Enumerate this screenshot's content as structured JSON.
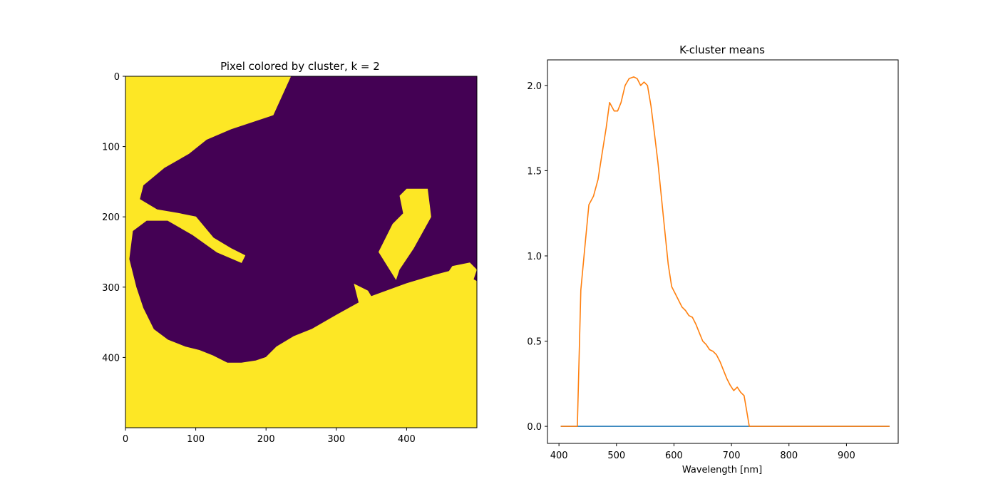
{
  "chart_data": [
    {
      "type": "heatmap",
      "title": "Pixel colored by cluster, k = 2",
      "xlabel": "",
      "ylabel": "",
      "xlim": [
        0,
        500
      ],
      "ylim": [
        500,
        0
      ],
      "xticks": [
        0,
        100,
        200,
        300,
        400
      ],
      "yticks": [
        0,
        100,
        200,
        300,
        400
      ],
      "colors": {
        "cluster_0": "#440154",
        "cluster_1": "#fde725"
      },
      "cluster_1_boundary": [
        [
          0,
          0
        ],
        [
          235,
          0
        ],
        [
          210,
          55
        ],
        [
          150,
          75
        ],
        [
          115,
          90
        ],
        [
          90,
          110
        ],
        [
          55,
          130
        ],
        [
          25,
          155
        ],
        [
          20,
          175
        ],
        [
          45,
          190
        ],
        [
          75,
          195
        ],
        [
          100,
          200
        ],
        [
          125,
          230
        ],
        [
          150,
          245
        ],
        [
          170,
          255
        ],
        [
          165,
          265
        ],
        [
          130,
          250
        ],
        [
          95,
          225
        ],
        [
          60,
          205
        ],
        [
          30,
          205
        ],
        [
          10,
          220
        ],
        [
          5,
          260
        ],
        [
          15,
          300
        ],
        [
          25,
          330
        ],
        [
          40,
          360
        ],
        [
          60,
          375
        ],
        [
          85,
          385
        ],
        [
          105,
          390
        ],
        [
          125,
          398
        ],
        [
          145,
          408
        ],
        [
          165,
          408
        ],
        [
          185,
          405
        ],
        [
          200,
          400
        ],
        [
          215,
          385
        ],
        [
          240,
          370
        ],
        [
          265,
          360
        ],
        [
          300,
          340
        ],
        [
          345,
          315
        ],
        [
          400,
          295
        ],
        [
          440,
          283
        ],
        [
          470,
          275
        ],
        [
          500,
          292
        ],
        [
          500,
          500
        ],
        [
          0,
          500
        ]
      ],
      "cluster_1_patches": [
        [
          [
            385,
            290
          ],
          [
            360,
            250
          ],
          [
            380,
            210
          ],
          [
            395,
            195
          ],
          [
            390,
            170
          ],
          [
            400,
            160
          ],
          [
            430,
            160
          ],
          [
            435,
            200
          ],
          [
            410,
            245
          ],
          [
            390,
            275
          ],
          [
            385,
            290
          ]
        ],
        [
          [
            330,
            315
          ],
          [
            325,
            295
          ],
          [
            345,
            305
          ],
          [
            360,
            330
          ],
          [
            350,
            345
          ],
          [
            335,
            335
          ],
          [
            330,
            315
          ]
        ],
        [
          [
            455,
            285
          ],
          [
            465,
            270
          ],
          [
            490,
            265
          ],
          [
            500,
            275
          ],
          [
            495,
            290
          ],
          [
            470,
            292
          ],
          [
            455,
            285
          ]
        ]
      ]
    },
    {
      "type": "line",
      "title": "K-cluster means",
      "xlabel": "Wavelength [nm]",
      "ylabel": "",
      "xlim": [
        380,
        990
      ],
      "ylim": [
        -0.1,
        2.15
      ],
      "xticks": [
        400,
        500,
        600,
        700,
        800,
        900
      ],
      "yticks": [
        0.0,
        0.5,
        1.0,
        1.5,
        2.0
      ],
      "x": [
        403,
        412,
        422,
        432,
        438,
        445,
        452,
        460,
        468,
        475,
        482,
        488,
        496,
        502,
        508,
        515,
        522,
        530,
        536,
        542,
        548,
        554,
        560,
        566,
        572,
        578,
        584,
        590,
        596,
        602,
        608,
        614,
        620,
        626,
        632,
        638,
        644,
        650,
        656,
        662,
        668,
        674,
        680,
        686,
        692,
        698,
        704,
        710,
        716,
        722,
        726,
        731,
        740,
        800,
        900,
        975
      ],
      "series": [
        {
          "color": "#1f77b4",
          "values": [
            0,
            0,
            0,
            0,
            0,
            0,
            0,
            0,
            0,
            0,
            0,
            0,
            0,
            0,
            0,
            0,
            0,
            0,
            0,
            0,
            0,
            0,
            0,
            0,
            0,
            0,
            0,
            0,
            0,
            0,
            0,
            0,
            0,
            0,
            0,
            0,
            0,
            0,
            0,
            0,
            0,
            0,
            0,
            0,
            0,
            0,
            0,
            0,
            0,
            0,
            0,
            0,
            0,
            0,
            0,
            0
          ]
        },
        {
          "color": "#ff7f0e",
          "values": [
            0,
            0,
            0,
            0,
            0.8,
            1.05,
            1.3,
            1.35,
            1.45,
            1.6,
            1.75,
            1.9,
            1.85,
            1.85,
            1.9,
            2.0,
            2.04,
            2.05,
            2.04,
            2.0,
            2.02,
            2.0,
            1.88,
            1.72,
            1.55,
            1.35,
            1.15,
            0.95,
            0.82,
            0.78,
            0.74,
            0.7,
            0.68,
            0.65,
            0.64,
            0.6,
            0.55,
            0.5,
            0.48,
            0.45,
            0.44,
            0.42,
            0.38,
            0.33,
            0.28,
            0.24,
            0.21,
            0.23,
            0.2,
            0.18,
            0.1,
            0,
            0,
            0,
            0,
            0
          ]
        }
      ]
    }
  ]
}
